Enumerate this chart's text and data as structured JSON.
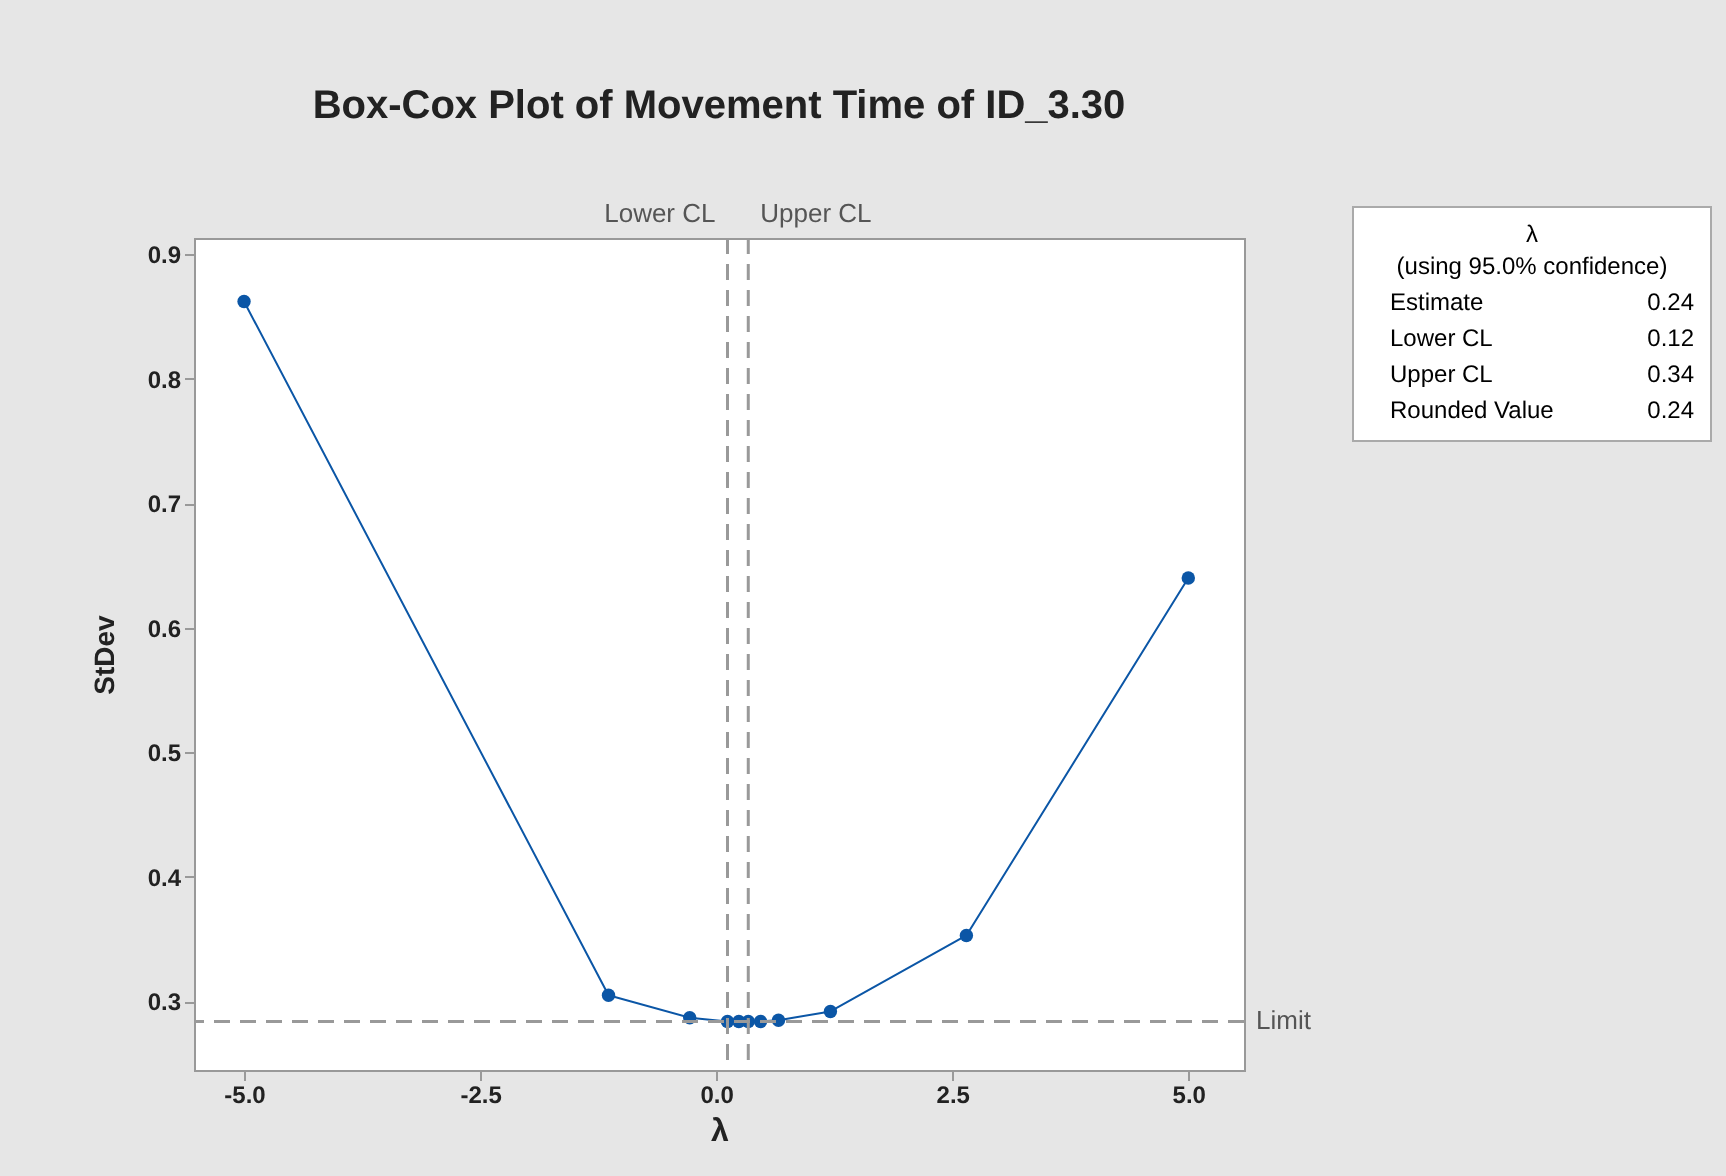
{
  "chart_data": {
    "type": "line",
    "title": "Box-Cox Plot of Movement Time of ID_3.30",
    "xlabel": "λ",
    "ylabel": "StDev",
    "x": [
      -5,
      -1.14,
      -0.28,
      0.12,
      0.24,
      0.34,
      0.47,
      0.66,
      1.21,
      2.65,
      5
    ],
    "series": [
      {
        "color": "#0b56a6",
        "values": [
          0.862,
          0.305,
          0.287,
          0.284,
          0.284,
          0.284,
          0.284,
          0.285,
          0.292,
          0.353,
          0.64
        ]
      }
    ],
    "xlim": [
      -5.53,
      5.59
    ],
    "ylim": [
      0.245,
      0.913
    ],
    "xticks": [
      {
        "value": -5,
        "label": "-5.0"
      },
      {
        "value": -2.5,
        "label": "-2.5"
      },
      {
        "value": 0,
        "label": "0.0"
      },
      {
        "value": 2.5,
        "label": "2.5"
      },
      {
        "value": 5,
        "label": "5.0"
      }
    ],
    "yticks": [
      0.3,
      0.4,
      0.5,
      0.6,
      0.7,
      0.8,
      0.9
    ],
    "ref_lines": [
      {
        "axis": "x",
        "value": 0.12,
        "label": "Lower CL",
        "color": "#999999",
        "line_style": "dashed"
      },
      {
        "axis": "x",
        "value": 0.34,
        "label": "Upper CL",
        "color": "#999999",
        "line_style": "dashed"
      },
      {
        "axis": "y",
        "value": 0.284,
        "label": "Limit",
        "color": "#999999",
        "line_style": "dashed"
      }
    ],
    "annotations": [
      "λ",
      "(using 95.0% confidence)",
      "Estimate 0.24",
      "Lower CL 0.12",
      "Upper CL 0.34",
      "Rounded Value 0.24"
    ],
    "marker": "circle",
    "grid": false
  }
}
